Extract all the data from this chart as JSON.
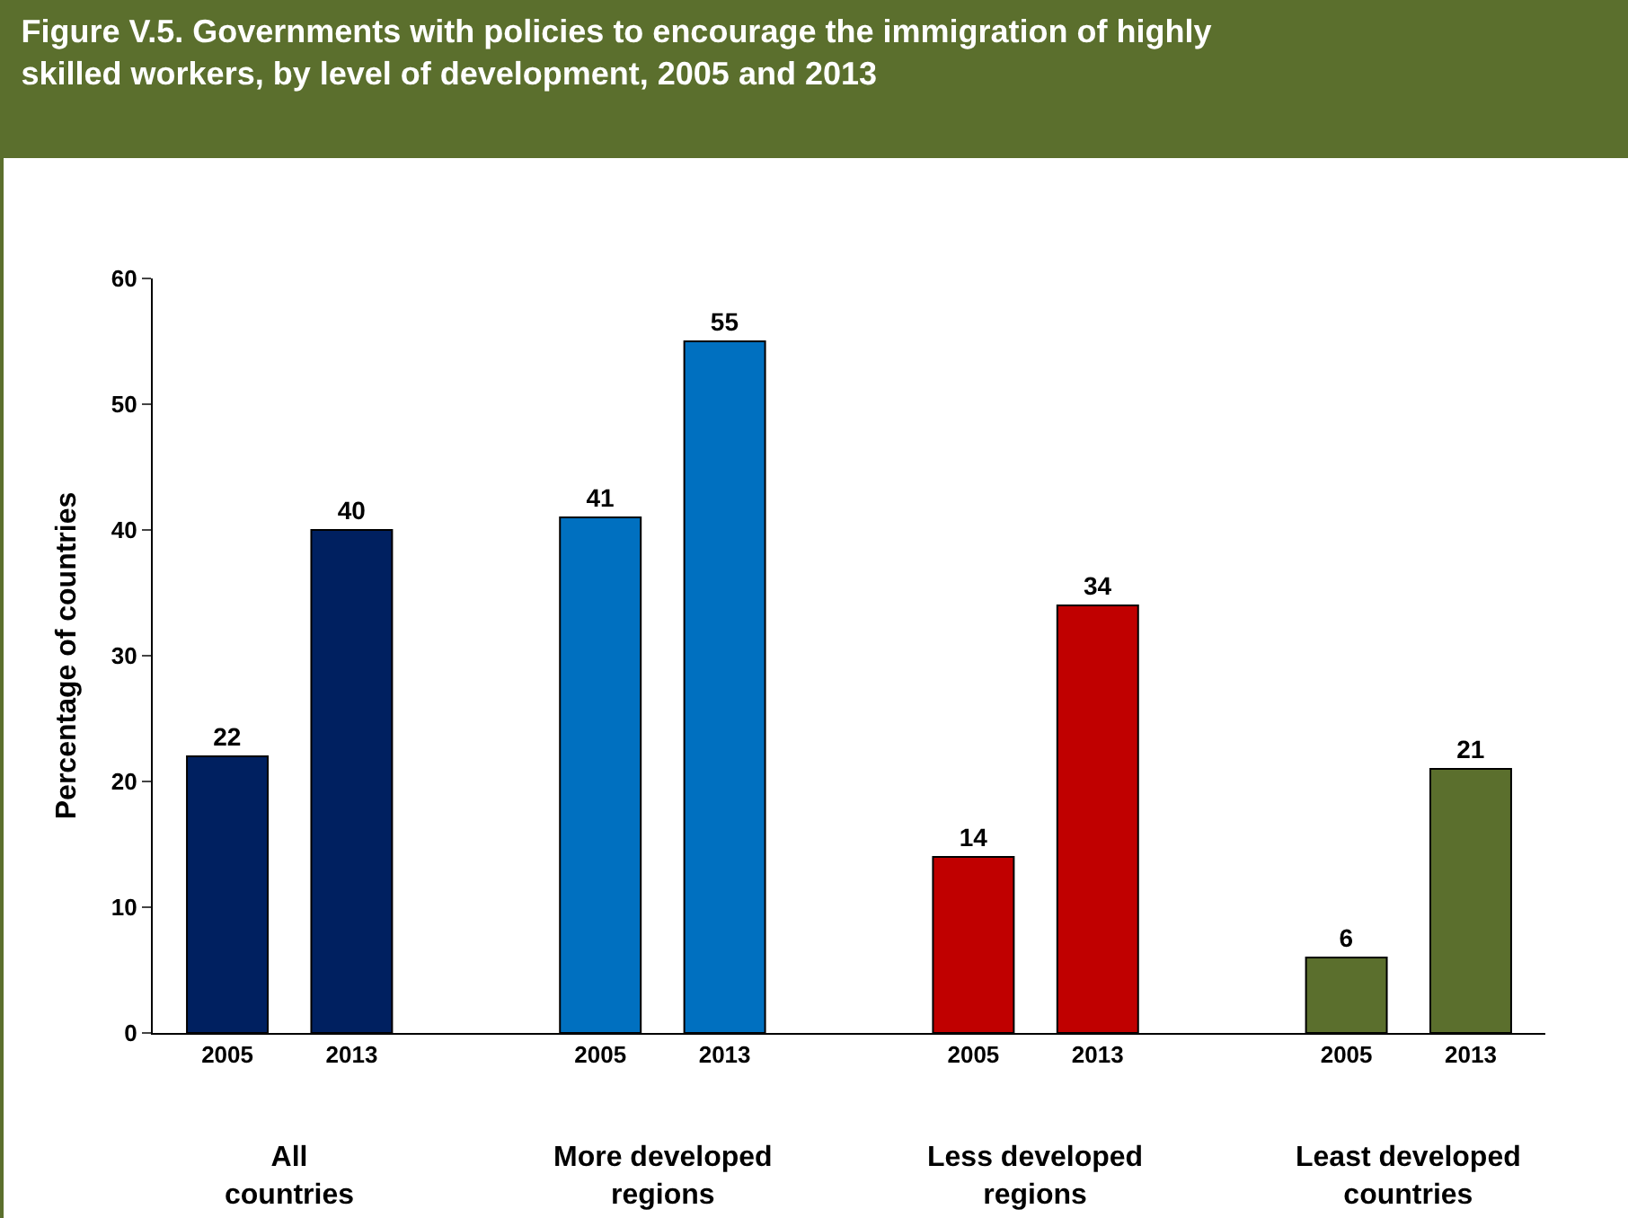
{
  "chart_data": {
    "type": "bar",
    "title": "Figure V.5. Governments with policies to encourage the immigration of highly\nskilled workers, by level of development, 2005 and 2013",
    "ylabel": "Percentage of countries",
    "categories": [
      "2005",
      "2013",
      null,
      "2005",
      "2013",
      null,
      "2005",
      "2013",
      null,
      "2005",
      "2013"
    ],
    "values": [
      22,
      40,
      null,
      41,
      55,
      null,
      14,
      34,
      null,
      6,
      21
    ],
    "colors": [
      "#002060",
      "#002060",
      null,
      "#0070c0",
      "#0070c0",
      null,
      "#c00000",
      "#c00000",
      null,
      "#5b6f2d",
      "#5b6f2d"
    ],
    "annotations": [
      "All\ncountries",
      "More developed\nregions",
      "Less developed\nregions",
      "Least developed\ncountries"
    ],
    "ylim": [
      0,
      60
    ],
    "yticks": [
      0,
      10,
      20,
      30,
      40,
      50,
      60
    ],
    "data_labels": true
  }
}
